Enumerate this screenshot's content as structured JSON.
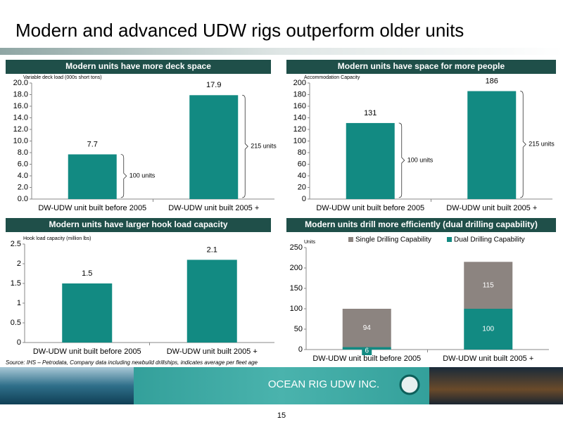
{
  "title": "Modern and advanced UDW rigs outperform older units",
  "chart_data": [
    {
      "type": "bar",
      "title": "Modern units have more deck space",
      "ylabel": "Variable deck load (000s short tons)",
      "categories": [
        "DW-UDW unit built before 2005",
        "DW-UDW unit built 2005 +"
      ],
      "values": [
        7.7,
        17.9
      ],
      "color": "#128a82",
      "ylim": [
        0,
        20
      ],
      "yticks": [
        {
          "value": 0,
          "label": "0.0"
        },
        {
          "value": 2,
          "label": "2.0"
        },
        {
          "value": 4,
          "label": "4.0"
        },
        {
          "value": 6,
          "label": "6.0"
        },
        {
          "value": 8,
          "label": "8.0"
        },
        {
          "value": 10,
          "label": "10.0"
        },
        {
          "value": 12,
          "label": "12.0"
        },
        {
          "value": 14,
          "label": "14.0"
        },
        {
          "value": 16,
          "label": "16.0"
        },
        {
          "value": 18,
          "label": "18.0"
        },
        {
          "value": 20,
          "label": "20.0"
        }
      ],
      "annotations": [
        "100 units",
        "215 units"
      ]
    },
    {
      "type": "bar",
      "title": "Modern units have space for more people",
      "ylabel": "Accommodation Capacity",
      "categories": [
        "DW-UDW unit built before 2005",
        "DW-UDW unit built 2005 +"
      ],
      "values": [
        131,
        186
      ],
      "color": "#128a82",
      "ylim": [
        0,
        200
      ],
      "yticks": [
        0,
        20,
        40,
        60,
        80,
        100,
        120,
        140,
        160,
        180,
        200
      ],
      "annotations": [
        "100 units",
        "215 units"
      ]
    },
    {
      "type": "bar",
      "title": "Modern units have larger hook load capacity",
      "ylabel": "Hook load capacity (million lbs)",
      "categories": [
        "DW-UDW unit built before 2005",
        "DW-UDW unit built 2005 +"
      ],
      "values": [
        1.5,
        2.1
      ],
      "color": "#128a82",
      "ylim": [
        0,
        2.5
      ],
      "yticks": [
        0,
        0.5,
        1,
        1.5,
        2,
        2.5
      ]
    },
    {
      "type": "stacked_bar",
      "title": "Modern units drill more efficiently (dual drilling capability)",
      "ylabel": "Units",
      "categories": [
        "DW-UDW unit built before 2005",
        "DW-UDW unit built 2005 +"
      ],
      "series": [
        {
          "name": "Single Drilling Capability",
          "color": "#8c8480",
          "values": [
            94,
            115
          ]
        },
        {
          "name": "Dual Drilling Capability",
          "color": "#128a82",
          "values": [
            6,
            100
          ]
        }
      ],
      "ylim": [
        0,
        250
      ],
      "yticks": [
        0,
        50,
        100,
        150,
        200,
        250
      ],
      "legend": "top"
    }
  ],
  "source": "Source: IHS – Petrodata, Company data including newbuild drillships, indicates average per fleet age",
  "footer": "OCEAN RIG UDW INC.",
  "page_number": "15"
}
